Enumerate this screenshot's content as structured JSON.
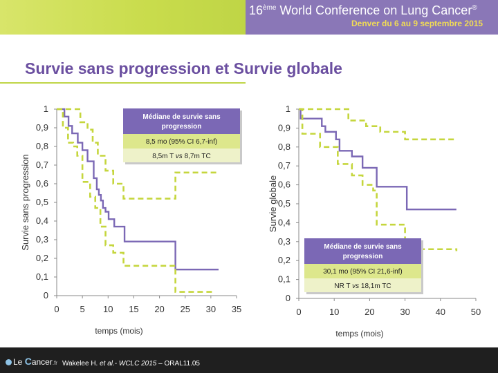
{
  "header": {
    "conference_prefix": "16",
    "conference_sup": "ème",
    "conference_name": " World Conference on Lung Cancer",
    "conference_reg": "®",
    "subtitle": "Denver du 6 au 9 septembre 2015"
  },
  "slide_title": "Survie sans progression et Survie globale",
  "chart_data": [
    {
      "type": "line",
      "step": true,
      "title": "",
      "xlabel": "temps (mois)",
      "ylabel": "Survie sans progression",
      "xlim": [
        0,
        35
      ],
      "ylim": [
        0,
        1
      ],
      "xticks": [
        "0",
        "5",
        "10",
        "15",
        "20",
        "25",
        "30",
        "35"
      ],
      "yticks": [
        "0",
        "0,1",
        "0,2",
        "0,3",
        "0,4",
        "0,5",
        "0,6",
        "0,7",
        "0,8",
        "0,9",
        "1"
      ],
      "grid": false,
      "series": [
        {
          "role": "estimate",
          "color": "#7b68b5",
          "dashed": false,
          "x": [
            0,
            1.5,
            2.3,
            3.0,
            4.1,
            5.0,
            6.0,
            7.2,
            7.8,
            8.2,
            8.6,
            9.0,
            9.5,
            10.1,
            11.2,
            13.2,
            23.0,
            23.1,
            31.5
          ],
          "y": [
            1,
            0.96,
            0.91,
            0.87,
            0.82,
            0.78,
            0.72,
            0.63,
            0.57,
            0.54,
            0.51,
            0.47,
            0.45,
            0.41,
            0.37,
            0.29,
            0.29,
            0.14,
            0.14
          ]
        },
        {
          "role": "upper 95% CI",
          "color": "#c5d63d",
          "dashed": true,
          "x": [
            0,
            3.5,
            4.6,
            6.0,
            7.0,
            8.0,
            9.5,
            11.0,
            13.0,
            23.0,
            23.1,
            31.5
          ],
          "y": [
            1,
            1,
            0.93,
            0.89,
            0.82,
            0.75,
            0.67,
            0.6,
            0.52,
            0.52,
            0.66,
            0.66
          ]
        },
        {
          "role": "lower 95% CI",
          "color": "#c5d63d",
          "dashed": true,
          "x": [
            0,
            1.2,
            2.2,
            3.2,
            4.0,
            5.0,
            6.5,
            7.5,
            8.5,
            9.5,
            11.0,
            13.0,
            23.0,
            23.1,
            30.5
          ],
          "y": [
            1,
            0.9,
            0.82,
            0.8,
            0.75,
            0.61,
            0.53,
            0.47,
            0.37,
            0.27,
            0.23,
            0.16,
            0.16,
            0.02,
            0.02
          ]
        }
      ],
      "legend_box": {
        "header": "Médiane de survie sans progression",
        "row1": "8,5 mo (95% CI 6,7-inf)",
        "row2_a": "8,5m T ",
        "row2_vs": "vs",
        "row2_b": " 8,7m TC"
      }
    },
    {
      "type": "line",
      "step": true,
      "title": "",
      "xlabel": "temps (mois)",
      "ylabel": "Survie globale",
      "xlim": [
        0,
        50
      ],
      "ylim": [
        0,
        1
      ],
      "xticks": [
        "0",
        "10",
        "20",
        "30",
        "40",
        "50"
      ],
      "yticks": [
        "0",
        "0,1",
        "0,2",
        "0,3",
        "0,4",
        "0,5",
        "0,6",
        "0,7",
        "0,8",
        "0,9",
        "1"
      ],
      "grid": false,
      "series": [
        {
          "role": "estimate",
          "color": "#7b68b5",
          "dashed": false,
          "x": [
            0,
            0.5,
            6.5,
            7.5,
            10.5,
            11.5,
            15.0,
            18.0,
            22.0,
            30.5,
            44.5
          ],
          "y": [
            1,
            0.95,
            0.91,
            0.88,
            0.84,
            0.78,
            0.75,
            0.69,
            0.59,
            0.47,
            0.47
          ]
        },
        {
          "role": "upper 95% CI",
          "color": "#c5d63d",
          "dashed": true,
          "x": [
            0,
            10.5,
            14.0,
            19.0,
            23.0,
            30.0,
            44.5
          ],
          "y": [
            1,
            1,
            0.94,
            0.91,
            0.88,
            0.84,
            0.84
          ]
        },
        {
          "role": "lower 95% CI",
          "color": "#c5d63d",
          "dashed": true,
          "x": [
            0,
            1.0,
            6.0,
            11.0,
            15.0,
            18.0,
            21.0,
            22.0,
            27.0,
            30.0,
            44.5
          ],
          "y": [
            1,
            0.87,
            0.8,
            0.71,
            0.65,
            0.6,
            0.57,
            0.39,
            0.39,
            0.26,
            0.25
          ]
        }
      ],
      "legend_box": {
        "header": "Médiane de survie sans progression",
        "row1": "30,1 mo (95% CI 21,6-inf)",
        "row2_a": "NR T ",
        "row2_vs": "vs",
        "row2_b": " 18,1m TC"
      }
    }
  ],
  "footer": {
    "logo_pre": "Le ",
    "logo_c": "C",
    "logo_post": "ancer",
    "logo_fr": ".fr",
    "cite_author": "Wakelee H. ",
    "cite_etal": "et al.",
    "cite_conf": "- WCLC 2015",
    "cite_rest": " – ORAL11.05"
  },
  "colors": {
    "header_band": "#8a77b7",
    "header_green": "#c9dc4c",
    "title": "#6b4fa0",
    "estimate": "#7b68b5",
    "ci": "#c5d63d",
    "box_header": "#7b68b5",
    "box_row1": "#dde78c",
    "box_row2": "#eef2c9"
  }
}
